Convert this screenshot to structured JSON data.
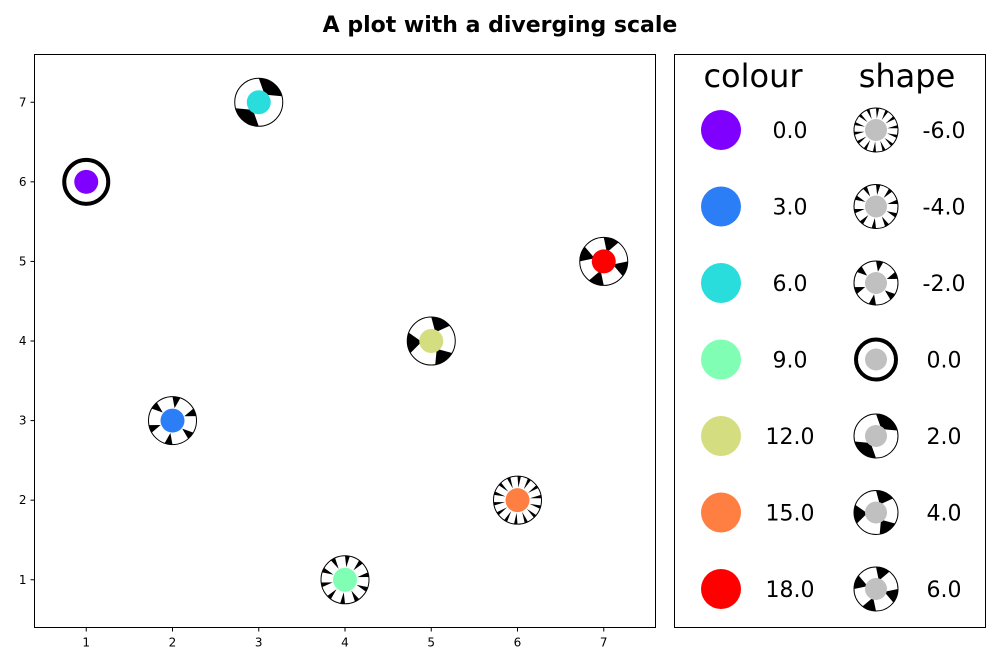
{
  "chart_data": {
    "type": "scatter",
    "title": "A plot with a diverging scale",
    "xlabel": "",
    "ylabel": "",
    "xlim": [
      0.4,
      7.6
    ],
    "ylim": [
      0.4,
      7.6
    ],
    "x_ticks": [
      "1",
      "2",
      "3",
      "4",
      "5",
      "6",
      "7"
    ],
    "y_ticks": [
      "1",
      "2",
      "3",
      "4",
      "5",
      "6",
      "7"
    ],
    "grid": false,
    "points": [
      {
        "x": 1,
        "y": 6,
        "colour": 0.0,
        "shape": 0.0
      },
      {
        "x": 2,
        "y": 3,
        "colour": 3.0,
        "shape": -2.0
      },
      {
        "x": 3,
        "y": 7,
        "colour": 6.0,
        "shape": 2.0
      },
      {
        "x": 4,
        "y": 1,
        "colour": 9.0,
        "shape": -4.0
      },
      {
        "x": 5,
        "y": 4,
        "colour": 12.0,
        "shape": 4.0
      },
      {
        "x": 6,
        "y": 2,
        "colour": 15.0,
        "shape": -6.0
      },
      {
        "x": 7,
        "y": 5,
        "colour": 18.0,
        "shape": 6.0
      }
    ],
    "legend": {
      "placement": "right panel",
      "colour_title": "colour",
      "shape_title": "shape",
      "colour_entries": [
        {
          "label": "0.0",
          "color": "#8000ff"
        },
        {
          "label": "3.0",
          "color": "#2c7ef7"
        },
        {
          "label": "6.0",
          "color": "#2adddd"
        },
        {
          "label": "9.0",
          "color": "#80ffb4"
        },
        {
          "label": "12.0",
          "color": "#d4dd80"
        },
        {
          "label": "15.0",
          "color": "#ff7e41"
        },
        {
          "label": "18.0",
          "color": "#ff0000"
        }
      ],
      "shape_entries": [
        {
          "label": "-6.0",
          "value": -6.0
        },
        {
          "label": "-4.0",
          "value": -4.0
        },
        {
          "label": "-2.0",
          "value": -2.0
        },
        {
          "label": "0.0",
          "value": 0.0
        },
        {
          "label": "2.0",
          "value": 2.0
        },
        {
          "label": "4.0",
          "value": 4.0
        },
        {
          "label": "6.0",
          "value": 6.0
        }
      ],
      "shape_fill_color": "#c0c0c0"
    }
  }
}
